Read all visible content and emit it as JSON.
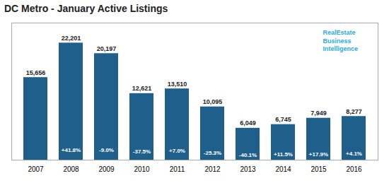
{
  "chart_data": {
    "type": "bar",
    "title": "DC Metro - January Active Listings",
    "categories": [
      "2007",
      "2008",
      "2009",
      "2010",
      "2011",
      "2012",
      "2013",
      "2014",
      "2015",
      "2016"
    ],
    "values": [
      15656,
      22201,
      20197,
      12621,
      13510,
      10095,
      6049,
      6745,
      7949,
      8277
    ],
    "value_labels": [
      "15,656",
      "22,201",
      "20,197",
      "12,621",
      "13,510",
      "10,095",
      "6,049",
      "6,745",
      "7,949",
      "8,277"
    ],
    "data_labels": true,
    "color": "#1f5f8b",
    "ylim": [
      0,
      26000
    ],
    "yticks": [],
    "tick_labels": "x",
    "grid": false,
    "annotations": [
      {
        "x": "2008",
        "text": "+41.8%"
      },
      {
        "x": "2009",
        "text": "-9.0%"
      },
      {
        "x": "2010",
        "text": "-37.5%"
      },
      {
        "x": "2011",
        "text": "+7.0%"
      },
      {
        "x": "2012",
        "text": "-25.3%"
      },
      {
        "x": "2013",
        "text": "-40.1%"
      },
      {
        "x": "2014",
        "text": "+11.5%"
      },
      {
        "x": "2015",
        "text": "+17.9%"
      },
      {
        "x": "2016",
        "text": "+4.1%"
      },
      {
        "text": "RealEstate\nBusiness\nIntelligence"
      }
    ]
  }
}
